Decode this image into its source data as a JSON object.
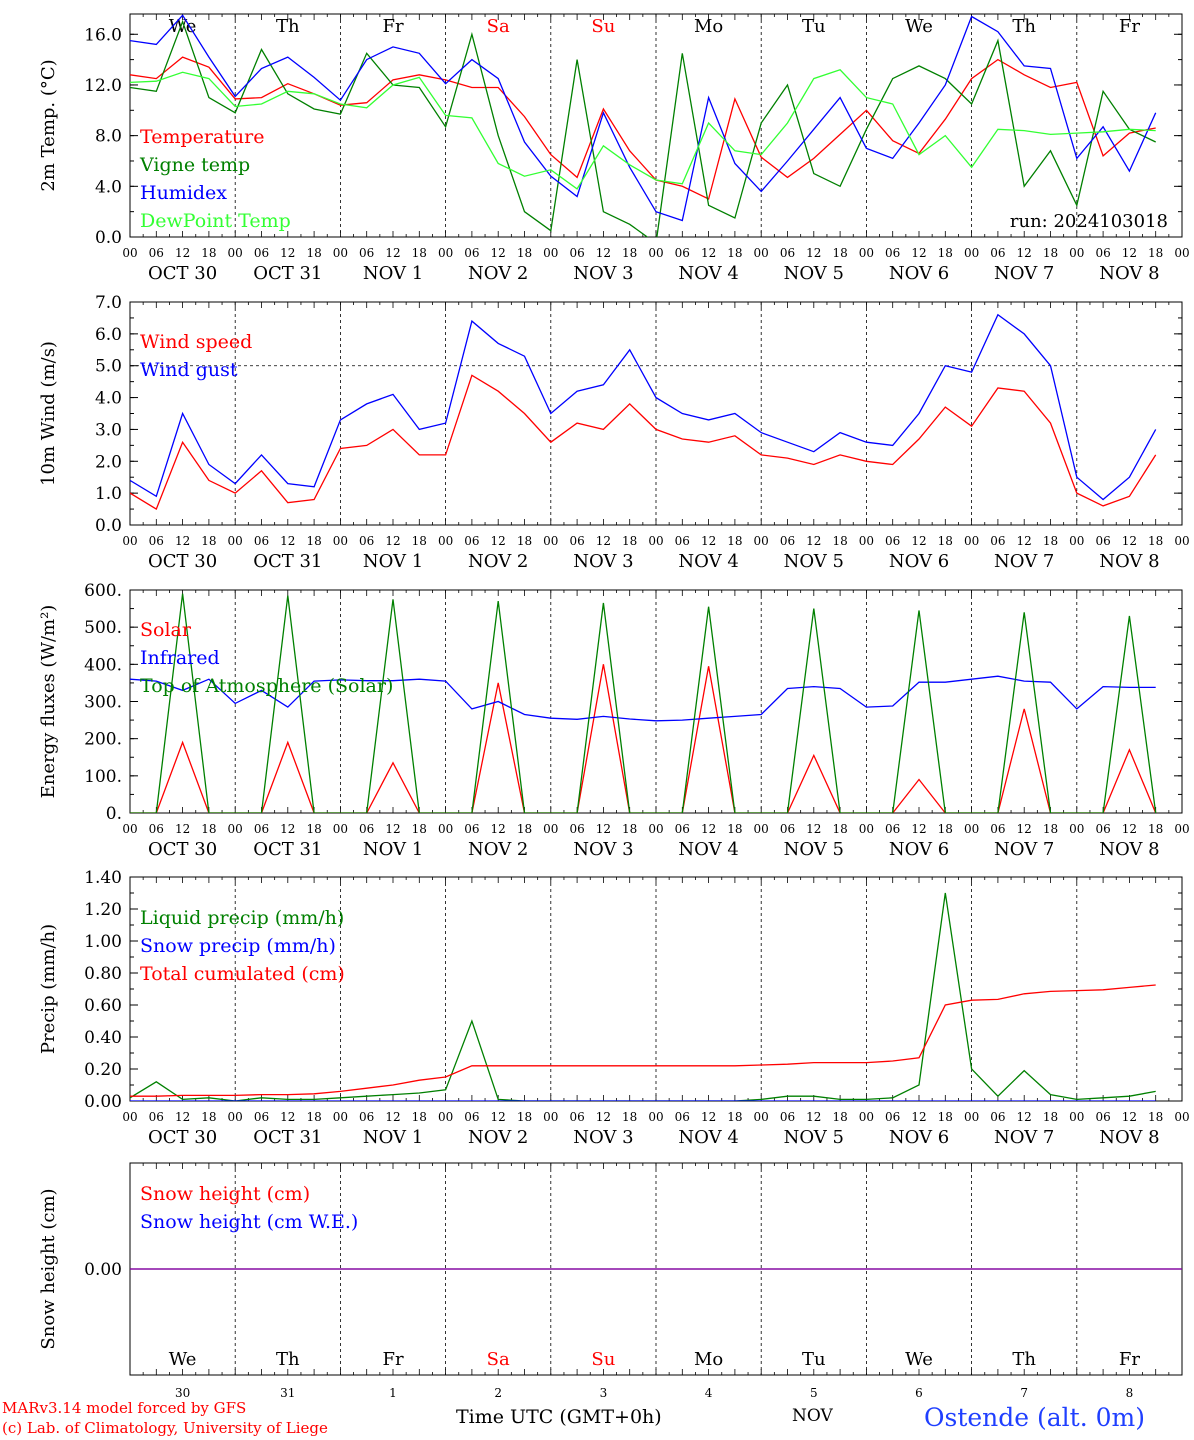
{
  "footer": {
    "credit_line1": "MARv3.14 model forced by GFS",
    "credit_line2": "(c) Lab. of Climatology, University of Liege",
    "time_axis_title": "Time UTC (GMT+0h)",
    "month_label": "NOV",
    "station": "Ostende (alt. 0m)"
  },
  "colors": {
    "red": "#ff0000",
    "green": "#008000",
    "blue": "#0000ff",
    "lightgreen": "#33ff33",
    "purple": "#8000a0",
    "weekend": "#ff0000"
  },
  "days": [
    {
      "abbr": "We",
      "num": "30",
      "date": "OCT 30",
      "weekend": false
    },
    {
      "abbr": "Th",
      "num": "31",
      "date": "OCT 31",
      "weekend": false
    },
    {
      "abbr": "Fr",
      "num": "1",
      "date": "NOV  1",
      "weekend": false
    },
    {
      "abbr": "Sa",
      "num": "2",
      "date": "NOV  2",
      "weekend": true
    },
    {
      "abbr": "Su",
      "num": "3",
      "date": "NOV  3",
      "weekend": true
    },
    {
      "abbr": "Mo",
      "num": "4",
      "date": "NOV  4",
      "weekend": false
    },
    {
      "abbr": "Tu",
      "num": "5",
      "date": "NOV  5",
      "weekend": false
    },
    {
      "abbr": "We",
      "num": "6",
      "date": "NOV  6",
      "weekend": false
    },
    {
      "abbr": "Th",
      "num": "7",
      "date": "NOV  7",
      "weekend": false
    },
    {
      "abbr": "Fr",
      "num": "8",
      "date": "NOV  8",
      "weekend": false
    }
  ],
  "hour_ticks": [
    "00",
    "06",
    "12",
    "18"
  ],
  "chart_data": [
    {
      "id": "temperature",
      "type": "line",
      "ylabel": "2m Temp. (°C)",
      "ylim": [
        0,
        17.6
      ],
      "yticks": [
        0,
        4,
        8,
        12,
        16
      ],
      "ytick_labels": [
        "0.0",
        "4.0",
        "8.0",
        "12.0",
        "16.0"
      ],
      "show_weekday_header": true,
      "annotation": "run: 2024103018",
      "x_hours": [
        0,
        6,
        12,
        18,
        24,
        30,
        36,
        42,
        48,
        54,
        60,
        66,
        72,
        78,
        84,
        90,
        96,
        102,
        108,
        114,
        120,
        126,
        132,
        138,
        144,
        150,
        156,
        162,
        168,
        174,
        180,
        186,
        192,
        198,
        204,
        210,
        216,
        222,
        228,
        234
      ],
      "series": [
        {
          "name": "Temperature",
          "color": "red",
          "values": [
            12.8,
            12.5,
            14.2,
            13.4,
            10.9,
            11.0,
            12.1,
            11.3,
            10.4,
            10.6,
            12.4,
            12.8,
            12.4,
            11.8,
            11.8,
            9.5,
            6.5,
            4.7,
            10.1,
            6.8,
            4.5,
            4.0,
            3.0,
            10.9,
            6.3,
            4.7,
            6.2,
            8.1,
            10.0,
            7.6,
            6.6,
            9.3,
            12.5,
            14.0,
            12.8,
            11.8,
            12.2,
            6.4,
            8.2,
            8.6
          ]
        },
        {
          "name": "Vigne temp",
          "color": "green",
          "values": [
            11.8,
            11.5,
            17.0,
            11.0,
            9.8,
            14.8,
            11.3,
            10.1,
            9.7,
            14.5,
            12.0,
            11.8,
            8.7,
            16.0,
            8.0,
            2.0,
            0.5,
            14.0,
            2.0,
            1.0,
            -0.5,
            14.5,
            2.5,
            1.5,
            9.0,
            12.0,
            5.0,
            4.0,
            8.5,
            12.5,
            13.5,
            12.5,
            10.5,
            15.5,
            4.0,
            6.8,
            2.5,
            11.5,
            8.5,
            7.5
          ]
        },
        {
          "name": "Humidex",
          "color": "blue",
          "values": [
            15.5,
            15.2,
            17.5,
            14.2,
            11.1,
            13.3,
            14.2,
            12.6,
            10.8,
            14.0,
            15.0,
            14.5,
            12.1,
            14.0,
            12.5,
            7.5,
            4.8,
            3.2,
            9.8,
            5.5,
            2.0,
            1.3,
            11.0,
            5.8,
            3.6,
            6.0,
            8.5,
            11.0,
            7.0,
            6.2,
            9.0,
            12.0,
            17.4,
            16.2,
            13.5,
            13.3,
            6.2,
            8.7,
            5.2,
            9.8
          ]
        },
        {
          "name": "DewPoint Temp",
          "color": "lightgreen",
          "values": [
            12.2,
            12.3,
            13.0,
            12.5,
            10.3,
            10.5,
            11.5,
            11.3,
            10.5,
            10.2,
            12.0,
            12.6,
            9.6,
            9.4,
            5.8,
            4.8,
            5.3,
            3.8,
            7.2,
            5.7,
            4.5,
            4.2,
            9.0,
            6.8,
            6.5,
            9.0,
            12.5,
            13.2,
            11.0,
            10.5,
            6.5,
            8.0,
            5.5,
            8.5,
            8.4,
            8.1,
            8.2,
            8.3,
            8.5,
            8.4
          ]
        }
      ]
    },
    {
      "id": "wind",
      "type": "line",
      "ylabel": "10m Wind (m/s)",
      "ylim": [
        0,
        7.0
      ],
      "yticks": [
        0,
        1,
        2,
        3,
        4,
        5,
        6,
        7
      ],
      "ytick_labels": [
        "0.0",
        "1.0",
        "2.0",
        "3.0",
        "4.0",
        "5.0",
        "6.0",
        "7.0"
      ],
      "hline": 5.0,
      "x_hours": [
        0,
        6,
        12,
        18,
        24,
        30,
        36,
        42,
        48,
        54,
        60,
        66,
        72,
        78,
        84,
        90,
        96,
        102,
        108,
        114,
        120,
        126,
        132,
        138,
        144,
        150,
        156,
        162,
        168,
        174,
        180,
        186,
        192,
        198,
        204,
        210,
        216,
        222,
        228,
        234
      ],
      "series": [
        {
          "name": "Wind speed",
          "color": "red",
          "values": [
            1.0,
            0.5,
            2.6,
            1.4,
            1.0,
            1.7,
            0.7,
            0.8,
            2.4,
            2.5,
            3.0,
            2.2,
            2.2,
            4.7,
            4.2,
            3.5,
            2.6,
            3.2,
            3.0,
            3.8,
            3.0,
            2.7,
            2.6,
            2.8,
            2.2,
            2.1,
            1.9,
            2.2,
            2.0,
            1.9,
            2.7,
            3.7,
            3.1,
            4.3,
            4.2,
            3.2,
            1.0,
            0.6,
            0.9,
            2.2
          ]
        },
        {
          "name": "Wind gust",
          "color": "blue",
          "values": [
            1.4,
            0.9,
            3.5,
            1.9,
            1.3,
            2.2,
            1.3,
            1.2,
            3.3,
            3.8,
            4.1,
            3.0,
            3.2,
            6.4,
            5.7,
            5.3,
            3.5,
            4.2,
            4.4,
            5.5,
            4.0,
            3.5,
            3.3,
            3.5,
            2.9,
            2.6,
            2.3,
            2.9,
            2.6,
            2.5,
            3.5,
            5.0,
            4.8,
            6.6,
            6.0,
            5.0,
            1.5,
            0.8,
            1.5,
            3.0
          ]
        }
      ]
    },
    {
      "id": "energy",
      "type": "line",
      "ylabel": "Energy fluxes (W/m²)",
      "ylim": [
        0,
        600
      ],
      "yticks": [
        0,
        100,
        200,
        300,
        400,
        500,
        600
      ],
      "ytick_labels": [
        "0.",
        "100.",
        "200.",
        "300.",
        "400.",
        "500.",
        "600."
      ],
      "x_hours": [
        0,
        6,
        12,
        18,
        24,
        30,
        36,
        42,
        48,
        54,
        60,
        66,
        72,
        78,
        84,
        90,
        96,
        102,
        108,
        114,
        120,
        126,
        132,
        138,
        144,
        150,
        156,
        162,
        168,
        174,
        180,
        186,
        192,
        198,
        204,
        210,
        216,
        222,
        228,
        234
      ],
      "series": [
        {
          "name": "Solar",
          "color": "red",
          "values": [
            0,
            0,
            190,
            0,
            0,
            0,
            190,
            0,
            0,
            0,
            135,
            0,
            0,
            0,
            350,
            0,
            0,
            0,
            400,
            0,
            0,
            0,
            395,
            0,
            0,
            0,
            155,
            0,
            0,
            0,
            90,
            0,
            0,
            0,
            280,
            0,
            0,
            0,
            170,
            0
          ]
        },
        {
          "name": "Infrared",
          "color": "blue",
          "values": [
            360,
            355,
            330,
            360,
            295,
            330,
            285,
            355,
            358,
            356,
            356,
            360,
            355,
            280,
            300,
            265,
            255,
            252,
            260,
            253,
            248,
            250,
            255,
            260,
            265,
            335,
            340,
            335,
            285,
            288,
            352,
            352,
            360,
            368,
            355,
            352,
            280,
            340,
            338,
            338
          ]
        },
        {
          "name": "Top of Atmosphere (Solar)",
          "color": "green",
          "values": [
            0,
            0,
            590,
            0,
            0,
            0,
            585,
            0,
            0,
            0,
            575,
            0,
            0,
            0,
            570,
            0,
            0,
            0,
            565,
            0,
            0,
            0,
            555,
            0,
            0,
            0,
            550,
            0,
            0,
            0,
            545,
            0,
            0,
            0,
            540,
            0,
            0,
            0,
            530,
            0
          ]
        }
      ]
    },
    {
      "id": "precip",
      "type": "line",
      "ylabel": "Precip (mm/h)",
      "ylim": [
        0,
        1.4
      ],
      "yticks": [
        0,
        0.2,
        0.4,
        0.6,
        0.8,
        1.0,
        1.2,
        1.4
      ],
      "ytick_labels": [
        "0.00",
        "0.20",
        "0.40",
        "0.60",
        "0.80",
        "1.00",
        "1.20",
        "1.40"
      ],
      "x_hours": [
        0,
        6,
        12,
        18,
        24,
        30,
        36,
        42,
        48,
        54,
        60,
        66,
        72,
        78,
        84,
        90,
        96,
        102,
        108,
        114,
        120,
        126,
        132,
        138,
        144,
        150,
        156,
        162,
        168,
        174,
        180,
        186,
        192,
        198,
        204,
        210,
        216,
        222,
        228,
        234
      ],
      "series": [
        {
          "name": "Liquid precip (mm/h)",
          "color": "green",
          "values": [
            0.02,
            0.12,
            0.01,
            0.02,
            0.0,
            0.02,
            0.01,
            0.01,
            0.02,
            0.03,
            0.04,
            0.05,
            0.07,
            0.5,
            0.01,
            0.0,
            0.0,
            0.0,
            0.0,
            0.0,
            0.0,
            0.0,
            0.0,
            0.0,
            0.01,
            0.03,
            0.03,
            0.01,
            0.01,
            0.02,
            0.1,
            1.3,
            0.2,
            0.03,
            0.19,
            0.04,
            0.01,
            0.02,
            0.03,
            0.06
          ]
        },
        {
          "name": "Snow precip (mm/h)",
          "color": "blue",
          "values": [
            0,
            0,
            0,
            0,
            0,
            0,
            0,
            0,
            0,
            0,
            0,
            0,
            0,
            0,
            0,
            0,
            0,
            0,
            0,
            0,
            0,
            0,
            0,
            0,
            0,
            0,
            0,
            0,
            0,
            0,
            0,
            0,
            0,
            0,
            0,
            0,
            0,
            0,
            0,
            0
          ]
        },
        {
          "name": "Total cumulated (cm)",
          "color": "red",
          "values": [
            0.03,
            0.03,
            0.035,
            0.035,
            0.035,
            0.04,
            0.04,
            0.045,
            0.06,
            0.08,
            0.1,
            0.13,
            0.15,
            0.22,
            0.22,
            0.22,
            0.22,
            0.22,
            0.22,
            0.22,
            0.22,
            0.22,
            0.22,
            0.22,
            0.225,
            0.23,
            0.24,
            0.24,
            0.24,
            0.25,
            0.27,
            0.6,
            0.63,
            0.635,
            0.67,
            0.685,
            0.69,
            0.695,
            0.71,
            0.725
          ]
        }
      ]
    },
    {
      "id": "snow",
      "type": "line",
      "ylabel": "Snow height (cm)",
      "ylim": [
        -1,
        1
      ],
      "yticks": [
        0
      ],
      "ytick_labels": [
        "0.00"
      ],
      "show_weekday_footer": true,
      "x_hours": [
        0,
        240
      ],
      "series": [
        {
          "name": "Snow height (cm)",
          "color": "red",
          "values": [
            0,
            0
          ]
        },
        {
          "name": "Snow height (cm W.E.)",
          "color": "blue",
          "values": [
            0,
            0
          ]
        }
      ]
    }
  ]
}
